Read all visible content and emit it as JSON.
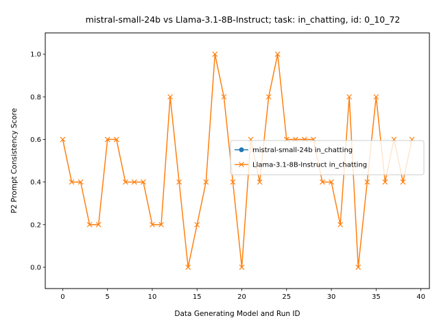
{
  "chart_data": {
    "type": "line",
    "title": "mistral-small-24b vs Llama-3.1-8B-Instruct; task: in_chatting, id: 0_10_72",
    "xlabel": "Data Generating Model and Run ID",
    "ylabel": "P2 Prompt Consistency Score",
    "xlim": [
      -1.95,
      40.95
    ],
    "ylim": [
      -0.1,
      1.1
    ],
    "xticks": [
      0,
      5,
      10,
      15,
      20,
      25,
      30,
      35,
      40
    ],
    "yticks": [
      0.0,
      0.2,
      0.4,
      0.6,
      0.8,
      1.0
    ],
    "grid": false,
    "legend_position": "center-right",
    "series": [
      {
        "name": "mistral-small-24b in_chatting",
        "color": "#1f77b4",
        "marker": "circle",
        "x": [],
        "values": []
      },
      {
        "name": "Llama-3.1-8B-Instruct in_chatting",
        "color": "#ff7f0e",
        "marker": "x",
        "x": [
          0,
          1,
          2,
          3,
          4,
          5,
          6,
          7,
          8,
          9,
          10,
          11,
          12,
          13,
          14,
          15,
          16,
          17,
          18,
          19,
          20,
          21,
          22,
          23,
          24,
          25,
          26,
          27,
          28,
          29,
          30,
          31,
          32,
          33,
          34,
          35,
          36,
          37,
          38,
          39
        ],
        "values": [
          0.6,
          0.4,
          0.4,
          0.2,
          0.2,
          0.6,
          0.6,
          0.4,
          0.4,
          0.4,
          0.2,
          0.2,
          0.8,
          0.4,
          0.0,
          0.2,
          0.4,
          1.0,
          0.8,
          0.4,
          0.0,
          0.6,
          0.4,
          0.8,
          1.0,
          0.6,
          0.6,
          0.6,
          0.6,
          0.4,
          0.4,
          0.2,
          0.8,
          0.0,
          0.4,
          0.8,
          0.4,
          0.6,
          0.4,
          0.6
        ]
      }
    ]
  }
}
